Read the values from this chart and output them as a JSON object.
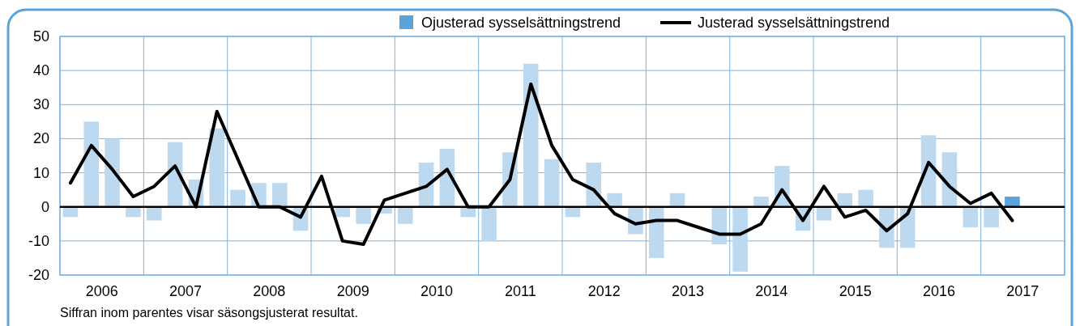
{
  "chart_data": {
    "type": "bar",
    "x": [
      2006.125,
      2006.375,
      2006.625,
      2006.875,
      2007.125,
      2007.375,
      2007.625,
      2007.875,
      2008.125,
      2008.375,
      2008.625,
      2008.875,
      2009.125,
      2009.375,
      2009.625,
      2009.875,
      2010.125,
      2010.375,
      2010.625,
      2010.875,
      2011.125,
      2011.375,
      2011.625,
      2011.875,
      2012.125,
      2012.375,
      2012.625,
      2012.875,
      2013.125,
      2013.375,
      2013.625,
      2013.875,
      2014.125,
      2014.375,
      2014.625,
      2014.875,
      2015.125,
      2015.375,
      2015.625,
      2015.875,
      2016.125,
      2016.375,
      2016.625,
      2016.875,
      2017.125,
      2017.375
    ],
    "series": [
      {
        "name": "Ojusterad sysselsättningstrend",
        "color": "#5ba3d9",
        "colors": [
          "#bdd9ef",
          "#bdd9ef",
          "#bdd9ef",
          "#bdd9ef",
          "#bdd9ef",
          "#bdd9ef",
          "#bdd9ef",
          "#bdd9ef",
          "#bdd9ef",
          "#bdd9ef",
          "#bdd9ef",
          "#bdd9ef",
          "#bdd9ef",
          "#bdd9ef",
          "#bdd9ef",
          "#bdd9ef",
          "#bdd9ef",
          "#bdd9ef",
          "#bdd9ef",
          "#bdd9ef",
          "#bdd9ef",
          "#bdd9ef",
          "#bdd9ef",
          "#bdd9ef",
          "#bdd9ef",
          "#bdd9ef",
          "#bdd9ef",
          "#bdd9ef",
          "#bdd9ef",
          "#bdd9ef",
          "#bdd9ef",
          "#bdd9ef",
          "#bdd9ef",
          "#bdd9ef",
          "#bdd9ef",
          "#bdd9ef",
          "#bdd9ef",
          "#bdd9ef",
          "#bdd9ef",
          "#bdd9ef",
          "#bdd9ef",
          "#bdd9ef",
          "#bdd9ef",
          "#bdd9ef",
          "#bdd9ef",
          "#5ba3d9"
        ],
        "values": [
          -3,
          25,
          20,
          -3,
          -4,
          19,
          8,
          23,
          5,
          7,
          7,
          -7,
          null,
          -3,
          -5,
          -2,
          -5,
          13,
          17,
          -3,
          -10,
          16,
          42,
          14,
          -3,
          13,
          4,
          -8,
          -15,
          4,
          null,
          -11,
          -19,
          3,
          12,
          -7,
          -4,
          4,
          5,
          -12,
          -12,
          21,
          16,
          -6,
          -6,
          3
        ]
      },
      {
        "name": "Justerad sysselsättningstrend",
        "type": "line",
        "color": "#000000",
        "values": [
          7,
          18,
          11,
          3,
          6,
          12,
          0,
          28,
          14,
          0,
          0,
          -3,
          9,
          -10,
          -11,
          2,
          4,
          6,
          11,
          0,
          0,
          8,
          36,
          18,
          8,
          5,
          -2,
          -5,
          -4,
          -4,
          -6,
          -8,
          -8,
          -5,
          5,
          -4,
          6,
          -3,
          -1,
          -7,
          -2,
          13,
          6,
          1,
          4,
          -4
        ]
      }
    ],
    "xlim": [
      2006,
      2018
    ],
    "xticks": [
      {
        "value": 2006,
        "label": null
      },
      {
        "value": 2006.5,
        "label": "2006"
      },
      {
        "value": 2007,
        "label": null
      },
      {
        "value": 2007.5,
        "label": "2007"
      },
      {
        "value": 2008,
        "label": null
      },
      {
        "value": 2008.5,
        "label": "2008"
      },
      {
        "value": 2009,
        "label": null
      },
      {
        "value": 2009.5,
        "label": "2009"
      },
      {
        "value": 2010,
        "label": null
      },
      {
        "value": 2010.5,
        "label": "2010"
      },
      {
        "value": 2011,
        "label": null
      },
      {
        "value": 2011.5,
        "label": "2011"
      },
      {
        "value": 2012,
        "label": null
      },
      {
        "value": 2012.5,
        "label": "2012"
      },
      {
        "value": 2013,
        "label": null
      },
      {
        "value": 2013.5,
        "label": "2013"
      },
      {
        "value": 2014,
        "label": null
      },
      {
        "value": 2014.5,
        "label": "2014"
      },
      {
        "value": 2015,
        "label": null
      },
      {
        "value": 2015.5,
        "label": "2015"
      },
      {
        "value": 2016,
        "label": null
      },
      {
        "value": 2016.5,
        "label": "2016"
      },
      {
        "value": 2017,
        "label": null
      },
      {
        "value": 2017.5,
        "label": "2017"
      },
      {
        "value": 2018,
        "label": null
      }
    ],
    "ylim": [
      -20,
      50
    ],
    "yticks": [
      -20,
      -10,
      0,
      10,
      20,
      30,
      40,
      50
    ],
    "grid": true,
    "legend": "top right",
    "ref_lines": [
      {
        "axis": "y",
        "value": 0,
        "color": "#000000"
      }
    ],
    "annotations": [
      "Siffran inom parentes visar säsongsjusterat resultat."
    ]
  }
}
